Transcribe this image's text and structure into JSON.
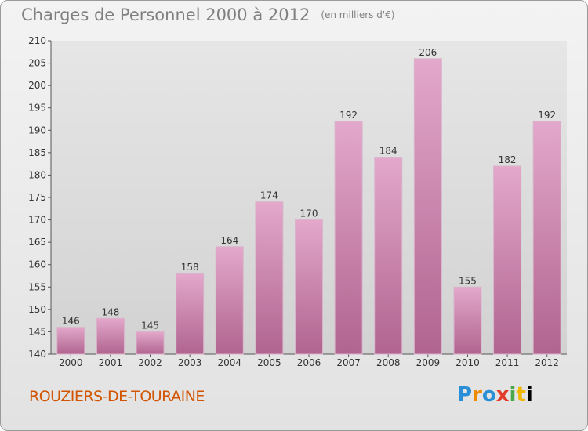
{
  "header": {
    "title": "Charges de Personnel 2000 à 2012",
    "subtitle": "(en milliers d'€)"
  },
  "footer": {
    "city": "ROUZIERS-DE-TOURAINE",
    "logo_letters": [
      "P",
      "r",
      "o",
      "x",
      "i",
      "t",
      "i"
    ]
  },
  "chart_data": {
    "type": "bar",
    "title": "Charges de Personnel 2000 à 2012",
    "subtitle": "(en milliers d'€)",
    "xlabel": "",
    "ylabel": "",
    "categories": [
      "2000",
      "2001",
      "2002",
      "2003",
      "2004",
      "2005",
      "2006",
      "2007",
      "2008",
      "2009",
      "2010",
      "2011",
      "2012"
    ],
    "values": [
      146,
      148,
      145,
      158,
      164,
      174,
      170,
      192,
      184,
      206,
      155,
      182,
      192
    ],
    "ylim": [
      140,
      210
    ],
    "yticks": [
      140,
      145,
      150,
      155,
      160,
      165,
      170,
      175,
      180,
      185,
      190,
      195,
      200,
      205,
      210
    ],
    "grid": false,
    "bar_color": "#cc7aa8"
  }
}
